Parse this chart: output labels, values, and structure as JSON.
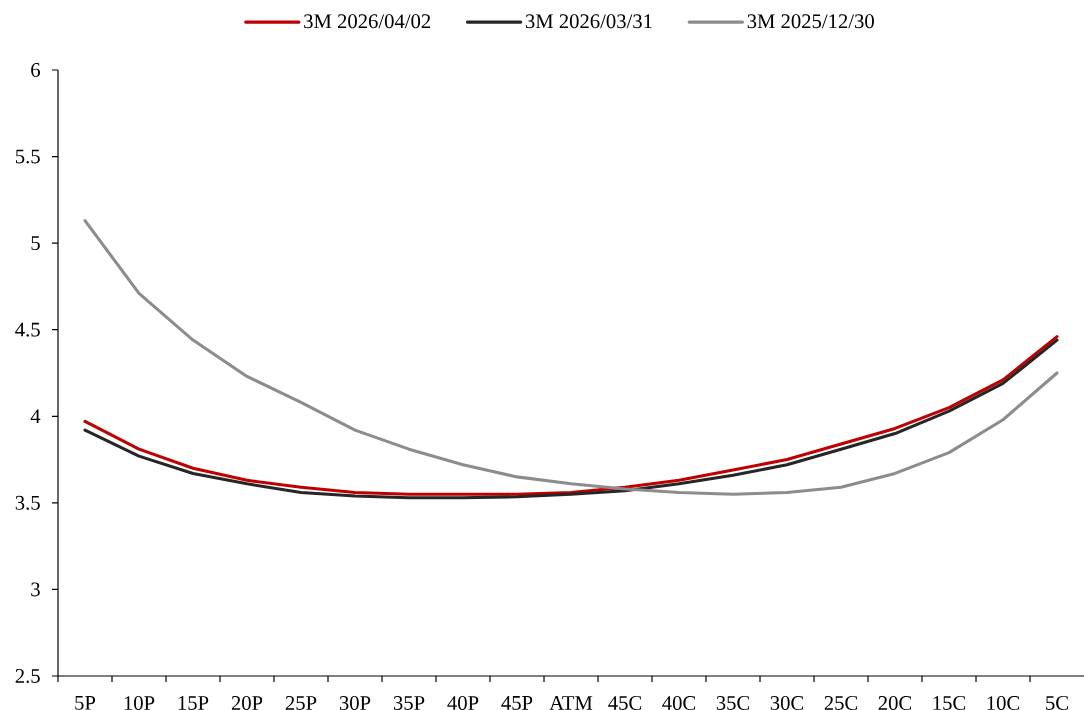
{
  "chart_data": {
    "type": "line",
    "categories": [
      "5P",
      "10P",
      "15P",
      "20P",
      "25P",
      "30P",
      "35P",
      "40P",
      "45P",
      "ATM",
      "45C",
      "40C",
      "35C",
      "30C",
      "25C",
      "20C",
      "15C",
      "10C",
      "5C"
    ],
    "series": [
      {
        "name": "3M 2026/04/02",
        "color": "#c00000",
        "values": [
          3.97,
          3.81,
          3.7,
          3.63,
          3.59,
          3.56,
          3.55,
          3.55,
          3.55,
          3.56,
          3.59,
          3.63,
          3.69,
          3.75,
          3.84,
          3.93,
          4.05,
          4.21,
          4.46
        ]
      },
      {
        "name": "3M 2026/03/31",
        "color": "#262626",
        "values": [
          3.92,
          3.77,
          3.67,
          3.61,
          3.56,
          3.54,
          3.53,
          3.53,
          3.535,
          3.55,
          3.57,
          3.61,
          3.66,
          3.72,
          3.81,
          3.9,
          4.03,
          4.19,
          4.44
        ]
      },
      {
        "name": "3M 2025/12/30",
        "color": "#8c8c8c",
        "values": [
          5.13,
          4.71,
          4.44,
          4.23,
          4.08,
          3.92,
          3.81,
          3.72,
          3.65,
          3.61,
          3.58,
          3.56,
          3.55,
          3.56,
          3.59,
          3.67,
          3.79,
          3.98,
          4.25
        ]
      }
    ],
    "ylim": [
      2.5,
      6
    ],
    "yticks": [
      2.5,
      3,
      3.5,
      4,
      4.5,
      5,
      5.5,
      6
    ],
    "legend": "top",
    "line_style": "solid"
  }
}
